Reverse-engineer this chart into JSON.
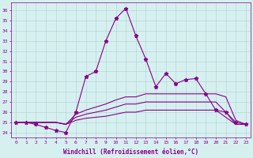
{
  "xlabel": "Windchill (Refroidissement éolien,°C)",
  "xlim": [
    -0.5,
    23.5
  ],
  "ylim": [
    23.5,
    36.8
  ],
  "yticks": [
    24,
    25,
    26,
    27,
    28,
    29,
    30,
    31,
    32,
    33,
    34,
    35,
    36
  ],
  "xticks": [
    0,
    1,
    2,
    3,
    4,
    5,
    6,
    7,
    8,
    9,
    10,
    11,
    12,
    13,
    14,
    15,
    16,
    17,
    18,
    19,
    20,
    21,
    22,
    23
  ],
  "bg_color": "#d6f0f0",
  "line_color": "#880088",
  "grid_color": "#b0d0d0",
  "series": [
    {
      "x": [
        0,
        1,
        2,
        3,
        4,
        5,
        6,
        7,
        8,
        9,
        10,
        11,
        12,
        13,
        14,
        15,
        16,
        17,
        18,
        19,
        20,
        21,
        22,
        23
      ],
      "y": [
        25.0,
        25.0,
        24.8,
        24.5,
        24.2,
        24.0,
        26.0,
        29.5,
        30.0,
        33.0,
        35.2,
        36.2,
        33.5,
        31.2,
        28.5,
        29.8,
        28.8,
        29.2,
        29.3,
        27.8,
        26.2,
        26.0,
        25.0,
        24.8
      ],
      "marker": "*",
      "markersize": 3.5,
      "linewidth": 0.8
    },
    {
      "x": [
        0,
        1,
        2,
        3,
        4,
        5,
        6,
        7,
        8,
        9,
        10,
        11,
        12,
        13,
        14,
        15,
        16,
        17,
        18,
        19,
        20,
        21,
        22,
        23
      ],
      "y": [
        25.0,
        25.0,
        25.0,
        25.0,
        25.0,
        24.8,
        25.8,
        26.2,
        26.5,
        26.8,
        27.2,
        27.5,
        27.5,
        27.8,
        27.8,
        27.8,
        27.8,
        27.8,
        27.8,
        27.8,
        27.8,
        27.5,
        25.2,
        24.8
      ],
      "marker": null,
      "markersize": 0,
      "linewidth": 0.8
    },
    {
      "x": [
        0,
        1,
        2,
        3,
        4,
        5,
        6,
        7,
        8,
        9,
        10,
        11,
        12,
        13,
        14,
        15,
        16,
        17,
        18,
        19,
        20,
        21,
        22,
        23
      ],
      "y": [
        25.0,
        25.0,
        25.0,
        25.0,
        25.0,
        24.8,
        25.5,
        25.8,
        26.0,
        26.2,
        26.5,
        26.8,
        26.8,
        27.0,
        27.0,
        27.0,
        27.0,
        27.0,
        27.0,
        27.0,
        27.0,
        26.0,
        24.8,
        24.8
      ],
      "marker": null,
      "markersize": 0,
      "linewidth": 0.8
    },
    {
      "x": [
        0,
        1,
        2,
        3,
        4,
        5,
        6,
        7,
        8,
        9,
        10,
        11,
        12,
        13,
        14,
        15,
        16,
        17,
        18,
        19,
        20,
        21,
        22,
        23
      ],
      "y": [
        25.0,
        25.0,
        25.0,
        25.0,
        25.0,
        24.8,
        25.2,
        25.4,
        25.5,
        25.6,
        25.8,
        26.0,
        26.0,
        26.2,
        26.2,
        26.2,
        26.2,
        26.2,
        26.2,
        26.2,
        26.2,
        25.5,
        24.8,
        24.8
      ],
      "marker": null,
      "markersize": 0,
      "linewidth": 0.8
    }
  ]
}
